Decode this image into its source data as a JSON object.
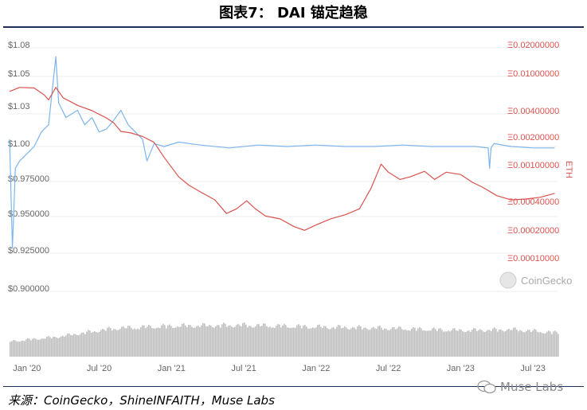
{
  "title": "图表7： DAI 锚定趋稳",
  "source": "来源：CoinGecko，ShineINFAITH，Muse Labs",
  "watermark": "Muse Labs",
  "logo_text": "CoinGecko",
  "colors": {
    "usd": "#7cb5ec",
    "eth": "#d9534f",
    "volume": "#bfbfbf",
    "rule": "#1f2f5a"
  },
  "chart_data": {
    "type": "line",
    "x_ticks": [
      "Jan '20",
      "Jul '20",
      "Jan '21",
      "Jul '21",
      "Jan '22",
      "Jul '22",
      "Jan '23",
      "Jul '23"
    ],
    "y_left_ticks": [
      "$1.08",
      "$1.05",
      "$1.03",
      "$1.00",
      "$0.975000",
      "$0.950000",
      "$0.925000",
      "$0.900000"
    ],
    "y_right_ticks": [
      "Ξ0.02000000",
      "Ξ0.01000000",
      "Ξ0.00400000",
      "Ξ0.00200000",
      "Ξ0.00100000",
      "Ξ0.00040000",
      "Ξ0.00020000",
      "Ξ0.00010000"
    ],
    "y_right_label": "ETH",
    "series": [
      {
        "name": "USD",
        "axis": "left",
        "points": [
          [
            2019.88,
            1.005
          ],
          [
            2019.9,
            0.93
          ],
          [
            2019.92,
            0.985
          ],
          [
            2019.95,
            0.99
          ],
          [
            2020.0,
            0.995
          ],
          [
            2020.05,
            1.0
          ],
          [
            2020.1,
            1.01
          ],
          [
            2020.15,
            1.015
          ],
          [
            2020.2,
            1.062
          ],
          [
            2020.22,
            1.03
          ],
          [
            2020.27,
            1.02
          ],
          [
            2020.35,
            1.025
          ],
          [
            2020.4,
            1.015
          ],
          [
            2020.45,
            1.02
          ],
          [
            2020.5,
            1.01
          ],
          [
            2020.55,
            1.012
          ],
          [
            2020.6,
            1.018
          ],
          [
            2020.65,
            1.025
          ],
          [
            2020.7,
            1.015
          ],
          [
            2020.75,
            1.01
          ],
          [
            2020.8,
            1.005
          ],
          [
            2020.83,
            0.99
          ],
          [
            2020.88,
            1.002
          ],
          [
            2020.95,
            1.0
          ],
          [
            2021.05,
            1.003
          ],
          [
            2021.2,
            1.001
          ],
          [
            2021.4,
            0.999
          ],
          [
            2021.6,
            1.001
          ],
          [
            2021.8,
            1.0
          ],
          [
            2022.0,
            1.001
          ],
          [
            2022.2,
            1.0
          ],
          [
            2022.4,
            1.0
          ],
          [
            2022.6,
            1.001
          ],
          [
            2022.8,
            1.0
          ],
          [
            2023.0,
            1.0
          ],
          [
            2023.1,
            1.0
          ],
          [
            2023.19,
            0.999
          ],
          [
            2023.2,
            0.985
          ],
          [
            2023.21,
            0.999
          ],
          [
            2023.23,
            1.002
          ],
          [
            2023.35,
            1.0
          ],
          [
            2023.5,
            0.999
          ],
          [
            2023.65,
            0.999
          ]
        ]
      },
      {
        "name": "ETH",
        "axis": "right",
        "points": [
          [
            2019.88,
            0.0068
          ],
          [
            2019.95,
            0.0075
          ],
          [
            2020.05,
            0.0074
          ],
          [
            2020.12,
            0.0062
          ],
          [
            2020.15,
            0.0055
          ],
          [
            2020.2,
            0.0075
          ],
          [
            2020.25,
            0.0058
          ],
          [
            2020.35,
            0.0048
          ],
          [
            2020.45,
            0.0042
          ],
          [
            2020.55,
            0.0035
          ],
          [
            2020.6,
            0.0031
          ],
          [
            2020.65,
            0.0025
          ],
          [
            2020.72,
            0.0024
          ],
          [
            2020.8,
            0.0022
          ],
          [
            2020.88,
            0.0019
          ],
          [
            2020.95,
            0.0013
          ],
          [
            2021.05,
            0.0008
          ],
          [
            2021.12,
            0.00065
          ],
          [
            2021.2,
            0.00055
          ],
          [
            2021.3,
            0.00045
          ],
          [
            2021.38,
            0.00032
          ],
          [
            2021.45,
            0.00036
          ],
          [
            2021.52,
            0.00044
          ],
          [
            2021.58,
            0.00036
          ],
          [
            2021.65,
            0.0003
          ],
          [
            2021.75,
            0.00028
          ],
          [
            2021.85,
            0.00023
          ],
          [
            2021.92,
            0.00021
          ],
          [
            2022.0,
            0.00024
          ],
          [
            2022.1,
            0.00028
          ],
          [
            2022.2,
            0.00031
          ],
          [
            2022.3,
            0.00036
          ],
          [
            2022.38,
            0.0006
          ],
          [
            2022.45,
            0.0011
          ],
          [
            2022.5,
            0.0009
          ],
          [
            2022.58,
            0.00075
          ],
          [
            2022.65,
            0.0008
          ],
          [
            2022.75,
            0.00092
          ],
          [
            2022.82,
            0.00075
          ],
          [
            2022.9,
            0.0009
          ],
          [
            2023.0,
            0.00085
          ],
          [
            2023.08,
            0.0007
          ],
          [
            2023.15,
            0.00062
          ],
          [
            2023.25,
            0.0005
          ],
          [
            2023.35,
            0.00045
          ],
          [
            2023.45,
            0.00046
          ],
          [
            2023.55,
            0.00048
          ],
          [
            2023.65,
            0.00053
          ]
        ]
      },
      {
        "name": "Volume",
        "axis": "volume",
        "points": [
          [
            2019.88,
            0.35
          ],
          [
            2020.2,
            0.45
          ],
          [
            2020.6,
            0.65
          ],
          [
            2021.0,
            0.7
          ],
          [
            2021.5,
            0.72
          ],
          [
            2022.0,
            0.68
          ],
          [
            2022.5,
            0.65
          ],
          [
            2023.0,
            0.6
          ],
          [
            2023.35,
            0.62
          ],
          [
            2023.65,
            0.55
          ]
        ]
      }
    ]
  }
}
